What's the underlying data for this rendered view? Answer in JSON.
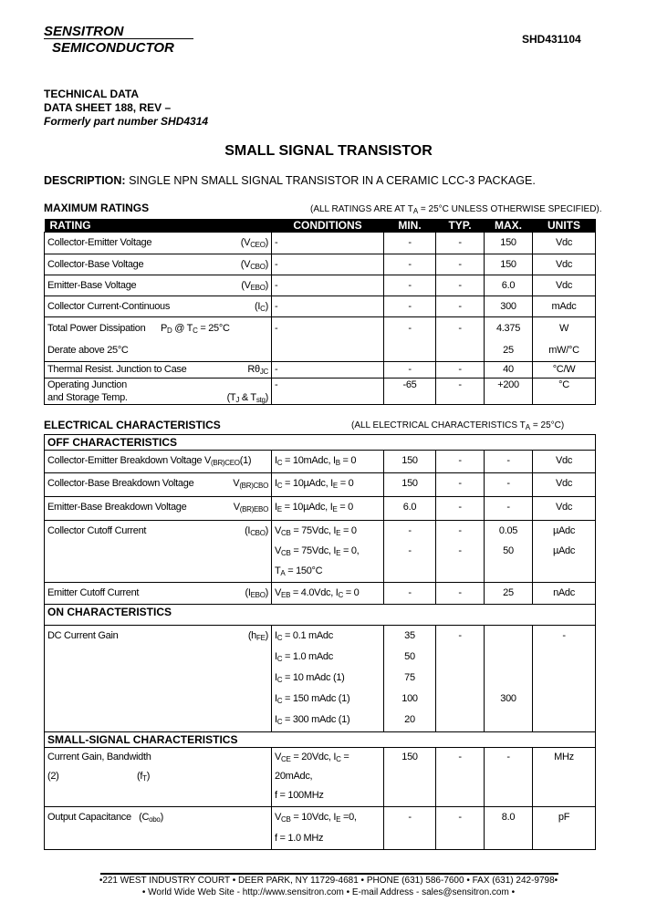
{
  "header": {
    "company_line1": "SENSITRON",
    "company_line2": "SEMICONDUCTOR",
    "part_number": "SHD431104"
  },
  "doc": {
    "line1": "TECHNICAL DATA",
    "line2": "DATA SHEET 188, REV –",
    "line3": "Formerly part number SHD4314",
    "title": "SMALL SIGNAL TRANSISTOR",
    "description_label": "DESCRIPTION:",
    "description": " SINGLE NPN SMALL SIGNAL TRANSISTOR IN A CERAMIC LCC-3 PACKAGE."
  },
  "max_ratings": {
    "heading": "MAXIMUM RATINGS",
    "note": "(ALL RATINGS ARE AT T_{A} = 25°C UNLESS OTHERWISE SPECIFIED).",
    "columns": [
      "RATING",
      "CONDITIONS",
      "MIN.",
      "TYP.",
      "MAX.",
      "UNITS"
    ],
    "rows": [
      {
        "rating": [
          "Collector-Emitter Voltage"
        ],
        "symbol": "(V_{CEO})",
        "conditions": [
          "-"
        ],
        "min": [
          "-"
        ],
        "typ": [
          "-"
        ],
        "max": [
          "150"
        ],
        "units": [
          "Vdc"
        ]
      },
      {
        "rating": [
          "Collector-Base Voltage"
        ],
        "symbol": "(V_{CBO})",
        "conditions": [
          "-"
        ],
        "min": [
          "-"
        ],
        "typ": [
          "-"
        ],
        "max": [
          "150"
        ],
        "units": [
          "Vdc"
        ]
      },
      {
        "rating": [
          "Emitter-Base Voltage"
        ],
        "symbol": "(V_{EBO})",
        "conditions": [
          "-"
        ],
        "min": [
          "-"
        ],
        "typ": [
          "-"
        ],
        "max": [
          "6.0"
        ],
        "units": [
          "Vdc"
        ]
      },
      {
        "rating": [
          "Collector Current-Continuous"
        ],
        "symbol": "(I_{C})",
        "conditions": [
          "-"
        ],
        "min": [
          "-"
        ],
        "typ": [
          "-"
        ],
        "max": [
          "300"
        ],
        "units": [
          "mAdc"
        ]
      },
      {
        "rating": [
          "Total Power Dissipation      P_{D} @ T_{C} = 25°C",
          "Derate above 25°C"
        ],
        "symbol": "",
        "conditions": [
          "-"
        ],
        "min": [
          "-"
        ],
        "typ": [
          "-"
        ],
        "max": [
          "4.375",
          "25"
        ],
        "units": [
          "W",
          "mW/°C"
        ]
      },
      {
        "rating": [
          "Thermal Resist. Junction to Case"
        ],
        "symbol": "Rθ_{JC}",
        "conditions": [
          "-"
        ],
        "min": [
          "-"
        ],
        "typ": [
          "-"
        ],
        "max": [
          "40"
        ],
        "units": [
          "°C/W"
        ]
      },
      {
        "rating": [
          "Operating Junction",
          "and Storage Temp."
        ],
        "symbol": "(T_{J} & T_{stg})",
        "conditions": [
          "-"
        ],
        "min": [
          "-65"
        ],
        "typ": [
          "-"
        ],
        "max": [
          "+200"
        ],
        "units": [
          "°C"
        ]
      }
    ]
  },
  "electrical": {
    "heading": "ELECTRICAL CHARACTERISTICS",
    "note": "(ALL ELECTRICAL CHARACTERISTICS T_{A} = 25°C)",
    "sections": [
      {
        "title": "OFF CHARACTERISTICS",
        "rows": [
          {
            "rating": [
              "Collector-Emitter Breakdown Voltage V_{(BR)CEO}(1)"
            ],
            "symbol": "",
            "conditions": [
              "I_{C} = 10mAdc, I_{B} = 0"
            ],
            "min": [
              "150"
            ],
            "typ": [
              "-"
            ],
            "max": [
              "-"
            ],
            "units": [
              "Vdc"
            ]
          },
          {
            "rating": [
              "Collector-Base Breakdown Voltage"
            ],
            "symbol": "V_{(BR)CBO}",
            "conditions": [
              "I_{C} = 10µAdc, I_{E} = 0"
            ],
            "min": [
              "150"
            ],
            "typ": [
              "-"
            ],
            "max": [
              "-"
            ],
            "units": [
              "Vdc"
            ]
          },
          {
            "rating": [
              "Emitter-Base Breakdown Voltage"
            ],
            "symbol": "V_{(BR)EBO}",
            "conditions": [
              "I_{E} = 10µAdc, I_{E} = 0"
            ],
            "min": [
              "6.0"
            ],
            "typ": [
              "-"
            ],
            "max": [
              "-"
            ],
            "units": [
              "Vdc"
            ]
          },
          {
            "rating": [
              "Collector Cutoff Current"
            ],
            "symbol": "(I_{CBO})",
            "conditions": [
              "V_{CB} = 75Vdc, I_{E} = 0",
              "V_{CB} = 75Vdc, I_{E} = 0,",
              "T_{A} = 150°C"
            ],
            "min": [
              "-",
              "-"
            ],
            "typ": [
              "-",
              "-"
            ],
            "max": [
              "0.05",
              "50"
            ],
            "units": [
              "µAdc",
              "µAdc"
            ]
          },
          {
            "rating": [
              "Emitter Cutoff Current"
            ],
            "symbol": "(I_{EBO})",
            "conditions": [
              "V_{EB} = 4.0Vdc, I_{C} = 0"
            ],
            "min": [
              "-"
            ],
            "typ": [
              "-"
            ],
            "max": [
              "25"
            ],
            "units": [
              "nAdc"
            ]
          }
        ]
      },
      {
        "title": "ON CHARACTERISTICS",
        "rows": [
          {
            "rating": [
              "DC Current Gain"
            ],
            "symbol": "(h_{FE})",
            "conditions": [
              "I_{C} = 0.1 mAdc",
              "I_{C} = 1.0 mAdc",
              "I_{C} = 10 mAdc (1)",
              "I_{C} = 150 mAdc (1)",
              "I_{C} = 300 mAdc (1)"
            ],
            "min": [
              "35",
              "50",
              "75",
              "100",
              "20"
            ],
            "typ": [
              "-"
            ],
            "max": [
              "",
              "",
              "",
              "300"
            ],
            "units": [
              "-"
            ]
          }
        ]
      },
      {
        "title": "SMALL-SIGNAL CHARACTERISTICS",
        "rows": [
          {
            "rating": [
              "Current Gain, Bandwidth",
              "(2)                               (f_{T})"
            ],
            "symbol": "",
            "conditions": [
              "V_{CE} = 20Vdc, I_{C} =",
              "20mAdc,",
              "f = 100MHz"
            ],
            "min": [
              "150"
            ],
            "typ": [
              "-"
            ],
            "max": [
              "-"
            ],
            "units": [
              "MHz"
            ]
          },
          {
            "rating": [
              "Output Capacitance   (C_{obo})"
            ],
            "symbol": "",
            "conditions": [
              "V_{CB} = 10Vdc, I_{E} =0,",
              "f = 1.0 MHz"
            ],
            "min": [
              "-"
            ],
            "typ": [
              "-"
            ],
            "max": [
              "8.0"
            ],
            "units": [
              "pF"
            ]
          }
        ]
      }
    ]
  },
  "footer": {
    "line1": "•221 WEST INDUSTRY COURT • DEER PARK, NY 11729-4681 • PHONE (631) 586-7600 • FAX (631) 242-9798•",
    "line2": "• World Wide Web Site - http://www.sensitron.com • E-mail Address - sales@sensitron.com •"
  }
}
